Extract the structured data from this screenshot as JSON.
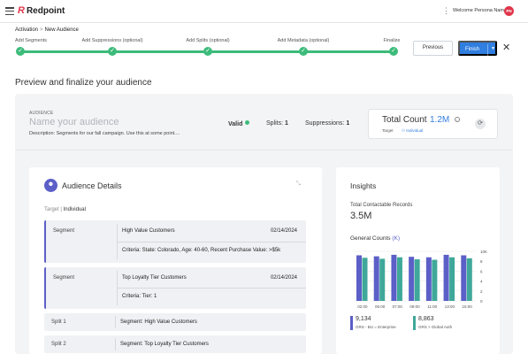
{
  "header": {
    "logo": "Redpoint",
    "welcome": "Welcome Persona Name",
    "avatar_initials": "PN"
  },
  "breadcrumb": {
    "parent": "Activation",
    "separator": ">",
    "current": "New Audience"
  },
  "steps": [
    "Add Segments",
    "Add Suppressions (optional)",
    "Add Splits (optional)",
    "Add Metadata (optional)",
    "Finalize"
  ],
  "actions": {
    "previous": "Previous",
    "finish": "Finish"
  },
  "page_title": "Preview and finalize your audience",
  "audience": {
    "caption": "AUDIENCE",
    "name_placeholder": "Name your audience",
    "description": "Description: Segments for our fall campaign. Use this at some point....",
    "valid": "Valid",
    "splits_label": "Splits:",
    "splits_count": "1",
    "suppressions_label": "Suppressions:",
    "suppressions_count": "1",
    "total_label": "Total Count",
    "total_value": "1.2M",
    "target_label": "Target",
    "target_value": "Individual"
  },
  "details": {
    "title": "Audience Details",
    "target_label": "Target",
    "target_value": "Individual",
    "segments": [
      {
        "kind": "Segment",
        "name": "High Value Customers",
        "date": "02/14/2024",
        "criteria": "Criteria: State: Colorado, Age: 40-60, Recent Purchase Value: >$5k"
      },
      {
        "kind": "Segment",
        "name": "Top Loyalty Tier Customers",
        "date": "02/14/2024",
        "criteria": "Criteria: Tier: 1"
      }
    ],
    "splits": [
      {
        "kind": "Split 1",
        "value": "Segment: High Value Customers"
      },
      {
        "kind": "Split 2",
        "value": "Segment: Top Loyalty Tier Customers"
      }
    ]
  },
  "insights": {
    "title": "Insights",
    "contactable_label": "Total Contactable Records",
    "contactable_value": "3.5M",
    "general_label": "General Counts",
    "general_unit": "(K)",
    "legend": [
      {
        "value": "9,134",
        "name": "GRS - BU = Enterprise",
        "color": "#5b5fc7"
      },
      {
        "value": "8,863",
        "name": "GRS > Global Auth",
        "color": "#3fa89a"
      }
    ]
  },
  "chart_data": {
    "type": "bar",
    "categories": [
      "02:00",
      "05:00",
      "07:00",
      "09:00",
      "11:00",
      "13:00",
      "15:00"
    ],
    "ylim": [
      0,
      10
    ],
    "y_ticks": [
      "10K",
      "8",
      "6",
      "4",
      "2",
      "0"
    ],
    "series": [
      {
        "name": "GRS - BU = Enterprise",
        "color": "#5b5fc7",
        "values": [
          9.2,
          9.0,
          9.3,
          8.9,
          8.8,
          9.3,
          9.2
        ]
      },
      {
        "name": "GRS > Global Auth",
        "color": "#3fa89a",
        "values": [
          8.7,
          8.5,
          8.8,
          8.4,
          8.3,
          8.8,
          8.6
        ]
      }
    ],
    "colors": {
      "a": "#5b5fc7",
      "b": "#3fa89a"
    }
  }
}
